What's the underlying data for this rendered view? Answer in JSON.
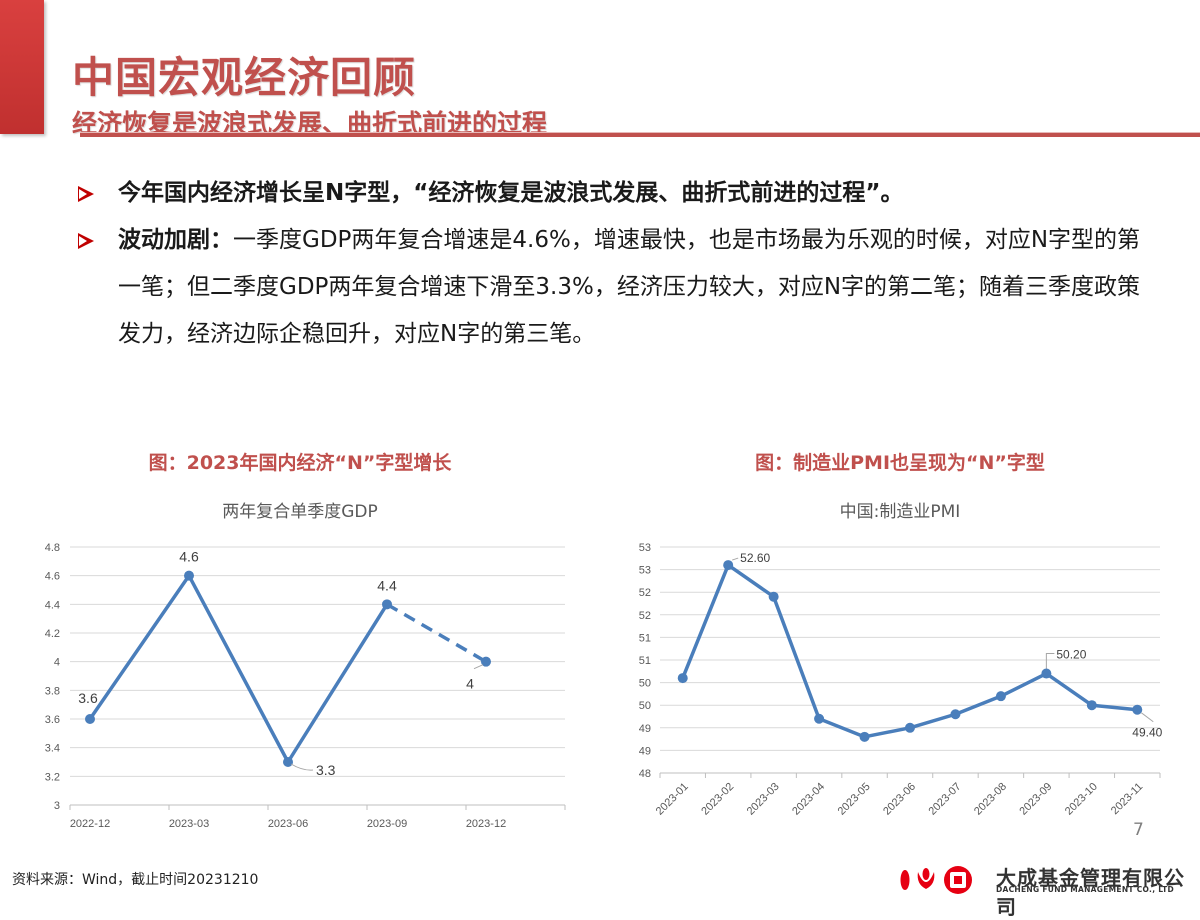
{
  "header": {
    "title": "中国宏观经济回顾",
    "subtitle": "经济恢复是波浪式发展、曲折式前进的过程"
  },
  "bullets": [
    {
      "lead": "今年国内经济增长呈N字型，“经济恢复是波浪式发展、曲折式前进的过程”。",
      "body": ""
    },
    {
      "lead": "波动加剧：",
      "body": "一季度GDP两年复合增速是4.6%，增速最快，也是市场最为乐观的时候，对应N字型的第一笔；但二季度GDP两年复合增速下滑至3.3%，经济压力较大，对应N字的第二笔；随着三季度政策发力，经济边际企稳回升，对应N字的第三笔。"
    }
  ],
  "colors": {
    "accent_red": "#c0504d",
    "line_blue": "#4a7ebb",
    "grid": "#d9d9d9",
    "axis_text": "#595959"
  },
  "chart_data": [
    {
      "type": "line",
      "caption": "图：2023年国内经济“N”字型增长",
      "title": "两年复合单季度GDP",
      "xlabel": "",
      "ylabel": "",
      "categories": [
        "2022-12",
        "2023-03",
        "2023-06",
        "2023-09",
        "2023-12"
      ],
      "series": [
        {
          "name": "两年复合单季度GDP",
          "values": [
            3.6,
            4.6,
            3.3,
            4.4,
            4.0
          ],
          "dashed_from_index": 3
        }
      ],
      "data_labels": [
        "3.6",
        "4.6",
        "3.3",
        "4.4",
        "4"
      ],
      "ylim": [
        3,
        4.8
      ],
      "yticks": [
        "3",
        "3.2",
        "3.4",
        "3.6",
        "3.8",
        "4",
        "4.2",
        "4.4",
        "4.6",
        "4.8"
      ],
      "grid": true,
      "legend": "none"
    },
    {
      "type": "line",
      "caption": "图：制造业PMI也呈现为“N”字型",
      "title": "中国:制造业PMI",
      "xlabel": "",
      "ylabel": "",
      "categories": [
        "2023-01",
        "2023-02",
        "2023-03",
        "2023-04",
        "2023-05",
        "2023-06",
        "2023-07",
        "2023-08",
        "2023-09",
        "2023-10",
        "2023-11"
      ],
      "series": [
        {
          "name": "中国:制造业PMI",
          "values": [
            50.1,
            52.6,
            51.9,
            49.2,
            48.8,
            49.0,
            49.3,
            49.7,
            50.2,
            49.5,
            49.4
          ]
        }
      ],
      "data_labels": {
        "1": "52.60",
        "8": "50.20",
        "10": "49.40"
      },
      "ylim": [
        48,
        53
      ],
      "yticks": [
        "48",
        "49",
        "49",
        "50",
        "50",
        "51",
        "51",
        "52",
        "52",
        "53",
        "53"
      ],
      "grid": true,
      "legend": "none"
    }
  ],
  "footer": {
    "source": "资料来源：Wind，截止时间20231210",
    "page_number": "7",
    "logo_cn": "大成基金管理有限公司",
    "logo_en": "DACHENG FUND MANAGEMENT CO., LTD"
  }
}
